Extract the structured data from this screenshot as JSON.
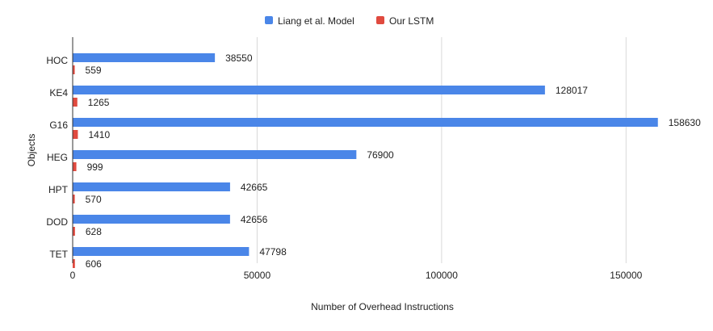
{
  "chart_data": {
    "type": "bar",
    "orientation": "horizontal",
    "title": "",
    "xlabel": "Number of Overhead Instructions",
    "ylabel": "Objects",
    "categories": [
      "HOC",
      "KE4",
      "G16",
      "HEG",
      "HPT",
      "DOD",
      "TET"
    ],
    "series": [
      {
        "name": "Liang et al. Model",
        "color": "#4a86e8",
        "values": [
          38550,
          128017,
          158630,
          76900,
          42665,
          42656,
          47798
        ]
      },
      {
        "name": "Our LSTM",
        "color": "#e04a3f",
        "values": [
          559,
          1265,
          1410,
          999,
          570,
          628,
          606
        ]
      }
    ],
    "xlim": [
      0,
      160000
    ],
    "xticks": [
      0,
      50000,
      100000,
      150000
    ],
    "xtick_labels": [
      "0",
      "50000",
      "100000",
      "150000"
    ],
    "grid": "vertical",
    "legend_position": "top-center",
    "data_labels": true
  }
}
